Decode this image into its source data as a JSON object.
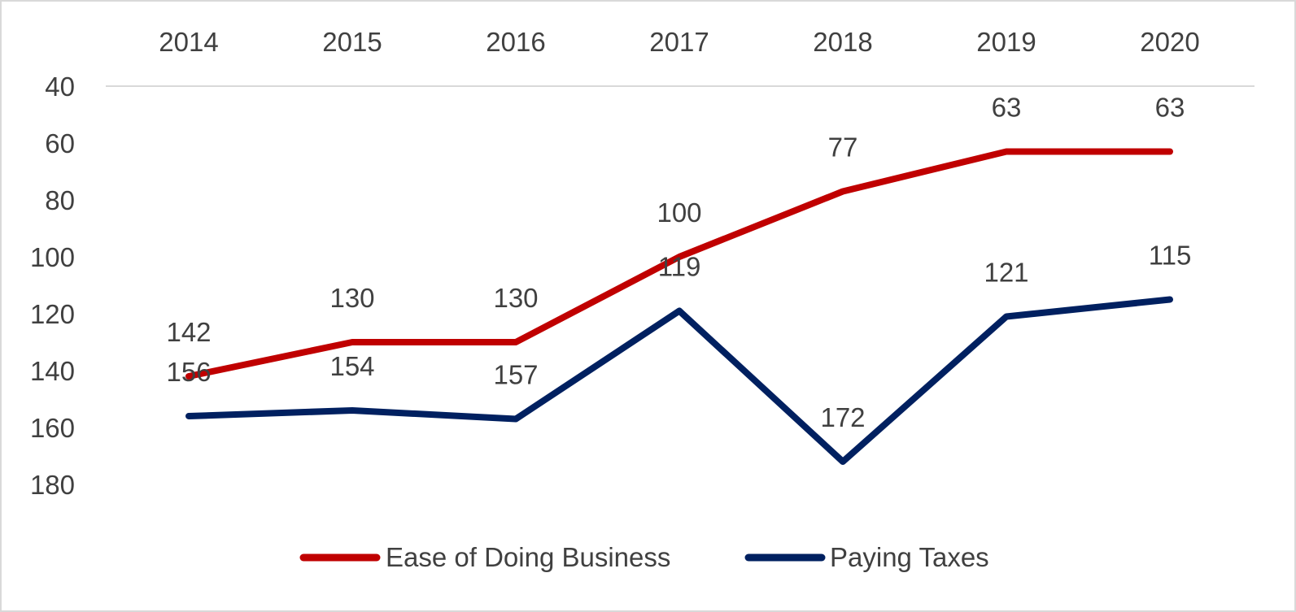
{
  "chart_data": {
    "type": "line",
    "title": "",
    "xlabel": "",
    "ylabel": "",
    "categories": [
      "2014",
      "2015",
      "2016",
      "2017",
      "2018",
      "2019",
      "2020"
    ],
    "yaxis": {
      "min": 40,
      "max": 180,
      "reversed": true,
      "ticks": [
        "40",
        "60",
        "80",
        "100",
        "120",
        "140",
        "160",
        "180"
      ],
      "tick_values": [
        40,
        60,
        80,
        100,
        120,
        140,
        160,
        180
      ]
    },
    "xaxis_position": "top",
    "grid": false,
    "legend_position": "bottom",
    "series": [
      {
        "name": "Ease of Doing Business",
        "color": "#c00000",
        "values": [
          142,
          130,
          130,
          100,
          77,
          63,
          63
        ],
        "labels": [
          "142",
          "130",
          "130",
          "100",
          "77",
          "63",
          "63"
        ]
      },
      {
        "name": "Paying Taxes",
        "color": "#002060",
        "values": [
          156,
          154,
          157,
          119,
          172,
          121,
          115
        ],
        "labels": [
          "156",
          "154",
          "157",
          "119",
          "172",
          "121",
          "115"
        ]
      }
    ]
  }
}
